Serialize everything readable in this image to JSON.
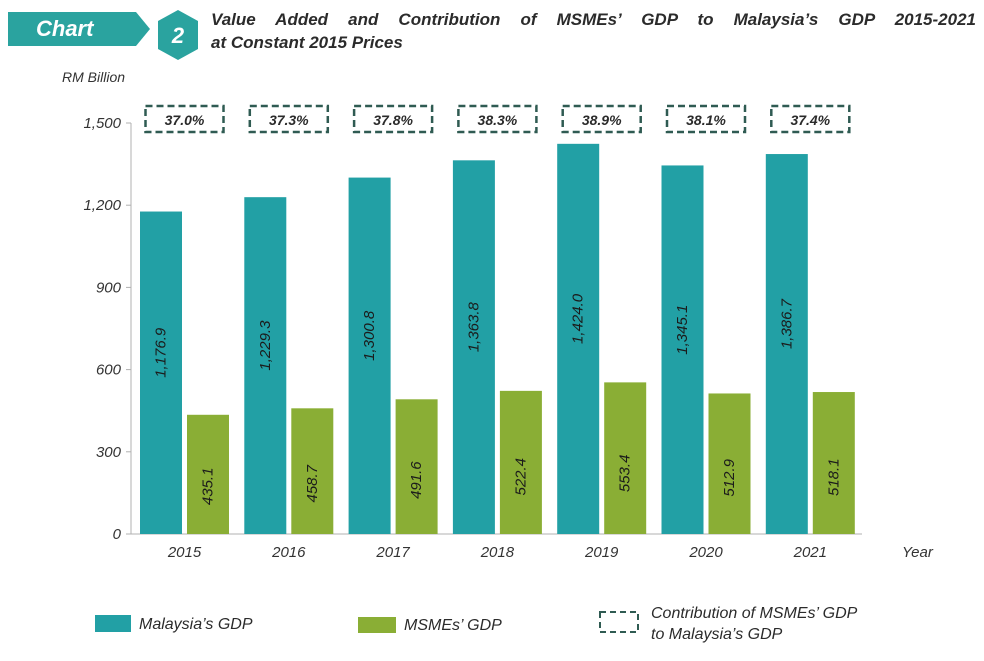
{
  "header": {
    "badge_label": "Chart",
    "chart_number": "2",
    "title_line1": "Value Added and Contribution of MSMEs’ GDP to Malaysia’s GDP 2015-2021",
    "title_line2": "at Constant 2015 Prices"
  },
  "colors": {
    "badge": "#2aa39f",
    "malaysia_bar": "#22a0a5",
    "msme_bar": "#8aae35",
    "contribution_border": "#2f5b52",
    "axis_text": "#333333"
  },
  "chart_data": {
    "type": "bar",
    "title": "Value Added and Contribution of MSMEs’ GDP to Malaysia’s GDP 2015-2021 at Constant 2015 Prices",
    "ylabel": "RM Billion",
    "xlabel": "Year",
    "ylim": [
      0,
      1500
    ],
    "yticks": [
      0,
      300,
      600,
      900,
      1200,
      1500
    ],
    "ytick_labels": [
      "0",
      "300",
      "600",
      "900",
      "1,200",
      "1,500"
    ],
    "categories": [
      "2015",
      "2016",
      "2017",
      "2018",
      "2019",
      "2020",
      "2021"
    ],
    "series": [
      {
        "name": "Malaysia’s GDP",
        "values": [
          1176.9,
          1229.3,
          1300.8,
          1363.8,
          1424.0,
          1345.1,
          1386.7
        ],
        "labels": [
          "1,176.9",
          "1,229.3",
          "1,300.8",
          "1,363.8",
          "1,424.0",
          "1,345.1",
          "1,386.7"
        ]
      },
      {
        "name": "MSMEs’ GDP",
        "values": [
          435.1,
          458.7,
          491.6,
          522.4,
          553.4,
          512.9,
          518.1
        ],
        "labels": [
          "435.1",
          "458.7",
          "491.6",
          "522.4",
          "553.4",
          "512.9",
          "518.1"
        ]
      }
    ],
    "contribution": {
      "name": "Contribution of MSMEs’ GDP to Malaysia’s GDP",
      "values": [
        37.0,
        37.3,
        37.8,
        38.3,
        38.9,
        38.1,
        37.4
      ],
      "labels": [
        "37.0%",
        "37.3%",
        "37.8%",
        "38.3%",
        "38.9%",
        "38.1%",
        "37.4%"
      ]
    },
    "legend": {
      "position": "bottom",
      "items": [
        "Malaysia’s GDP",
        "MSMEs’ GDP",
        "Contribution of MSMEs’ GDP",
        "to Malaysia’s GDP"
      ]
    },
    "grid": false
  }
}
